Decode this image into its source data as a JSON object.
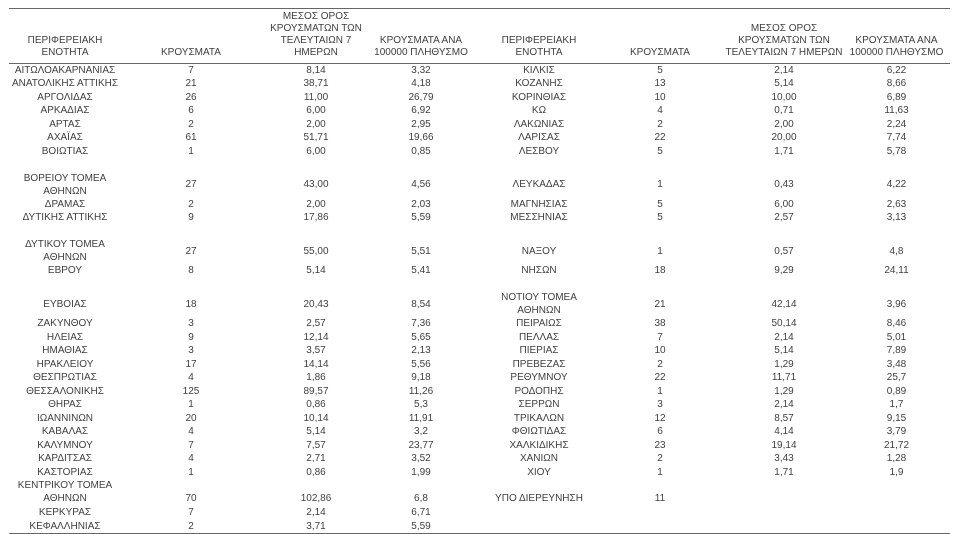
{
  "columns": {
    "region": "ΠΕΡΙΦΕΡΕΙΑΚΗ ΕΝΟΤΗΤΑ",
    "cases": "ΚΡΟΥΣΜΑΤΑ",
    "avg7": "ΜΕΣΟΣ ΟΡΟΣ\nΚΡΟΥΣΜΑΤΩΝ ΤΩΝ\nΤΕΛΕΥΤΑΙΩΝ 7 ΗΜΕΡΩΝ",
    "per100k": "ΚΡΟΥΣΜΑΤΑ ΑΝΑ\n100000 ΠΛΗΘΥΣΜΟ"
  },
  "colors": {
    "text": "#3f3f3f",
    "rule": "#666666",
    "background": "#ffffff"
  },
  "rows": [
    {
      "left": [
        "ΑΙΤΩΛΟΑΚΑΡΝΑΝΙΑΣ",
        "7",
        "8,14",
        "3,32"
      ],
      "right": [
        "ΚΙΛΚΙΣ",
        "5",
        "2,14",
        "6,22"
      ]
    },
    {
      "left": [
        "ΑΝΑΤΟΛΙΚΗΣ ΑΤΤΙΚΗΣ",
        "21",
        "38,71",
        "4,18"
      ],
      "right": [
        "ΚΟΖΑΝΗΣ",
        "13",
        "5,14",
        "8,66"
      ]
    },
    {
      "left": [
        "ΑΡΓΟΛΙΔΑΣ",
        "26",
        "11,00",
        "26,79"
      ],
      "right": [
        "ΚΟΡΙΝΘΙΑΣ",
        "10",
        "10,00",
        "6,89"
      ]
    },
    {
      "left": [
        "ΑΡΚΑΔΙΑΣ",
        "6",
        "6,00",
        "6,92"
      ],
      "right": [
        "ΚΩ",
        "4",
        "0,71",
        "11,63"
      ]
    },
    {
      "left": [
        "ΑΡΤΑΣ",
        "2",
        "2,00",
        "2,95"
      ],
      "right": [
        "ΛΑΚΩΝΙΑΣ",
        "2",
        "2,00",
        "2,24"
      ]
    },
    {
      "left": [
        "ΑΧΑΪΑΣ",
        "61",
        "51,71",
        "19,66"
      ],
      "right": [
        "ΛΑΡΙΣΑΣ",
        "22",
        "20,00",
        "7,74"
      ]
    },
    {
      "left": [
        "ΒΟΙΩΤΙΑΣ",
        "1",
        "6,00",
        "0,85"
      ],
      "right": [
        "ΛΕΣΒΟΥ",
        "5",
        "1,71",
        "5,78"
      ]
    },
    {
      "left": null,
      "right": null
    },
    {
      "left": [
        "ΒΟΡΕΙΟΥ ΤΟΜΕΑ ΑΘΗΝΩΝ",
        "27",
        "43,00",
        "4,56"
      ],
      "right": [
        "ΛΕΥΚΑΔΑΣ",
        "1",
        "0,43",
        "4,22"
      ]
    },
    {
      "left": [
        "ΔΡΑΜΑΣ",
        "2",
        "2,00",
        "2,03"
      ],
      "right": [
        "ΜΑΓΝΗΣΙΑΣ",
        "5",
        "6,00",
        "2,63"
      ]
    },
    {
      "left": [
        "ΔΥΤΙΚΗΣ ΑΤΤΙΚΗΣ",
        "9",
        "17,86",
        "5,59"
      ],
      "right": [
        "ΜΕΣΣΗΝΙΑΣ",
        "5",
        "2,57",
        "3,13"
      ]
    },
    {
      "left": null,
      "right": null
    },
    {
      "left": [
        "ΔΥΤΙΚΟΥ ΤΟΜΕΑ ΑΘΗΝΩΝ",
        "27",
        "55,00",
        "5,51"
      ],
      "right": [
        "ΝΑΞΟΥ",
        "1",
        "0,57",
        "4,8"
      ]
    },
    {
      "left": [
        "ΕΒΡΟΥ",
        "8",
        "5,14",
        "5,41"
      ],
      "right": [
        "ΝΗΣΩΝ",
        "18",
        "9,29",
        "24,11"
      ]
    },
    {
      "left": null,
      "right": null
    },
    {
      "left": [
        "ΕΥΒΟΙΑΣ",
        "18",
        "20,43",
        "8,54"
      ],
      "right": [
        "ΝΟΤΙΟΥ ΤΟΜΕΑ ΑΘΗΝΩΝ",
        "21",
        "42,14",
        "3,96"
      ]
    },
    {
      "left": [
        "ΖΑΚΥΝΘΟΥ",
        "3",
        "2,57",
        "7,36"
      ],
      "right": [
        "ΠΕΙΡΑΙΩΣ",
        "38",
        "50,14",
        "8,46"
      ]
    },
    {
      "left": [
        "ΗΛΕΙΑΣ",
        "9",
        "12,14",
        "5,65"
      ],
      "right": [
        "ΠΕΛΛΑΣ",
        "7",
        "2,14",
        "5,01"
      ]
    },
    {
      "left": [
        "ΗΜΑΘΙΑΣ",
        "3",
        "3,57",
        "2,13"
      ],
      "right": [
        "ΠΙΕΡΙΑΣ",
        "10",
        "5,14",
        "7,89"
      ]
    },
    {
      "left": [
        "ΗΡΑΚΛΕΙΟΥ",
        "17",
        "14,14",
        "5,56"
      ],
      "right": [
        "ΠΡΕΒΕΖΑΣ",
        "2",
        "1,29",
        "3,48"
      ]
    },
    {
      "left": [
        "ΘΕΣΠΡΩΤΙΑΣ",
        "4",
        "1,86",
        "9,18"
      ],
      "right": [
        "ΡΕΘΥΜΝΟΥ",
        "22",
        "11,71",
        "25,7"
      ]
    },
    {
      "left": [
        "ΘΕΣΣΑΛΟΝΙΚΗΣ",
        "125",
        "89,57",
        "11,26"
      ],
      "right": [
        "ΡΟΔΟΠΗΣ",
        "1",
        "1,29",
        "0,89"
      ]
    },
    {
      "left": [
        "ΘΗΡΑΣ",
        "1",
        "0,86",
        "5,3"
      ],
      "right": [
        "ΣΕΡΡΩΝ",
        "3",
        "2,14",
        "1,7"
      ]
    },
    {
      "left": [
        "ΙΩΑΝΝΙΝΩΝ",
        "20",
        "10,14",
        "11,91"
      ],
      "right": [
        "ΤΡΙΚΑΛΩΝ",
        "12",
        "8,57",
        "9,15"
      ]
    },
    {
      "left": [
        "ΚΑΒΑΛΑΣ",
        "4",
        "5,14",
        "3,2"
      ],
      "right": [
        "ΦΘΙΩΤΙΔΑΣ",
        "6",
        "4,14",
        "3,79"
      ]
    },
    {
      "left": [
        "ΚΑΛΥΜΝΟΥ",
        "7",
        "7,57",
        "23,77"
      ],
      "right": [
        "ΧΑΛΚΙΔΙΚΗΣ",
        "23",
        "19,14",
        "21,72"
      ]
    },
    {
      "left": [
        "ΚΑΡΔΙΤΣΑΣ",
        "4",
        "2,71",
        "3,52"
      ],
      "right": [
        "ΧΑΝΙΩΝ",
        "2",
        "3,43",
        "1,28"
      ]
    },
    {
      "left": [
        "ΚΑΣΤΟΡΙΑΣ",
        "1",
        "0,86",
        "1,99"
      ],
      "right": [
        "ΧΙΟΥ",
        "1",
        "1,71",
        "1,9"
      ]
    },
    {
      "left": [
        "ΚΕΝΤΡΙΚΟΥ ΤΟΜΕΑ\nΑΘΗΝΩΝ",
        "70",
        "102,86",
        "6,8"
      ],
      "right": [
        "ΥΠΟ ΔΙΕΡΕΥΝΗΣΗ",
        "11",
        "",
        ""
      ]
    },
    {
      "left": [
        "ΚΕΡΚΥΡΑΣ",
        "7",
        "2,14",
        "6,71"
      ],
      "right": null
    },
    {
      "left": [
        "ΚΕΦΑΛΛΗΝΙΑΣ",
        "2",
        "3,71",
        "5,59"
      ],
      "right": null
    }
  ]
}
